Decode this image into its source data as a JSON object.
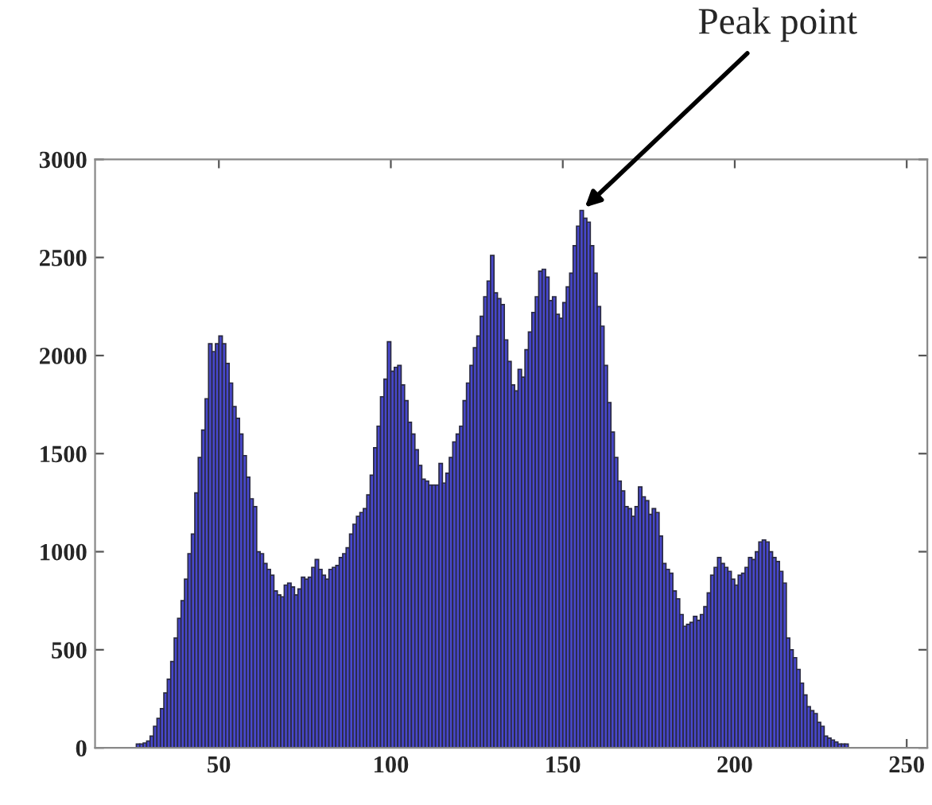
{
  "chart_data": {
    "type": "histogram",
    "bins": [
      26,
      27,
      28,
      29,
      30,
      31,
      32,
      33,
      34,
      35,
      36,
      37,
      38,
      39,
      40,
      41,
      42,
      43,
      44,
      45,
      46,
      47,
      48,
      49,
      50,
      51,
      52,
      53,
      54,
      55,
      56,
      57,
      58,
      59,
      60,
      61,
      62,
      63,
      64,
      65,
      66,
      67,
      68,
      69,
      70,
      71,
      72,
      73,
      74,
      75,
      76,
      77,
      78,
      79,
      80,
      81,
      82,
      83,
      84,
      85,
      86,
      87,
      88,
      89,
      90,
      91,
      92,
      93,
      94,
      95,
      96,
      97,
      98,
      99,
      100,
      101,
      102,
      103,
      104,
      105,
      106,
      107,
      108,
      109,
      110,
      111,
      112,
      113,
      114,
      115,
      116,
      117,
      118,
      119,
      120,
      121,
      122,
      123,
      124,
      125,
      126,
      127,
      128,
      129,
      130,
      131,
      132,
      133,
      134,
      135,
      136,
      137,
      138,
      139,
      140,
      141,
      142,
      143,
      144,
      145,
      146,
      147,
      148,
      149,
      150,
      151,
      152,
      153,
      154,
      155,
      156,
      157,
      158,
      159,
      160,
      161,
      162,
      163,
      164,
      165,
      166,
      167,
      168,
      169,
      170,
      171,
      172,
      173,
      174,
      175,
      176,
      177,
      178,
      179,
      180,
      181,
      182,
      183,
      184,
      185,
      186,
      187,
      188,
      189,
      190,
      191,
      192,
      193,
      194,
      195,
      196,
      197,
      198,
      199,
      200,
      201,
      202,
      203,
      204,
      205,
      206,
      207,
      208,
      209,
      210,
      211,
      212,
      213,
      214,
      215,
      216,
      217,
      218,
      219,
      220,
      221,
      222,
      223,
      224,
      225,
      226,
      227,
      228,
      229,
      230,
      231,
      232,
      233
    ],
    "values": [
      20,
      20,
      25,
      35,
      60,
      110,
      150,
      200,
      280,
      350,
      440,
      560,
      660,
      750,
      860,
      990,
      1090,
      1300,
      1480,
      1620,
      1780,
      2060,
      2020,
      2060,
      2100,
      2060,
      1960,
      1860,
      1740,
      1680,
      1600,
      1490,
      1380,
      1270,
      1230,
      1000,
      990,
      940,
      910,
      880,
      800,
      780,
      770,
      830,
      840,
      820,
      780,
      810,
      870,
      860,
      870,
      920,
      960,
      910,
      880,
      860,
      910,
      920,
      930,
      970,
      990,
      1020,
      1090,
      1140,
      1180,
      1200,
      1220,
      1290,
      1390,
      1530,
      1640,
      1790,
      1880,
      2070,
      1920,
      1940,
      1950,
      1850,
      1770,
      1660,
      1600,
      1520,
      1440,
      1370,
      1360,
      1340,
      1340,
      1340,
      1450,
      1350,
      1400,
      1480,
      1560,
      1600,
      1640,
      1770,
      1860,
      1950,
      2040,
      2100,
      2200,
      2300,
      2380,
      2510,
      2320,
      2290,
      2260,
      2080,
      1970,
      1850,
      1820,
      1930,
      1890,
      2030,
      2120,
      2220,
      2300,
      2430,
      2440,
      2400,
      2280,
      2300,
      2210,
      2190,
      2270,
      2350,
      2420,
      2560,
      2660,
      2740,
      2700,
      2680,
      2560,
      2420,
      2250,
      2150,
      1950,
      1760,
      1610,
      1480,
      1360,
      1310,
      1230,
      1220,
      1180,
      1230,
      1330,
      1280,
      1260,
      1190,
      1220,
      1200,
      1080,
      940,
      910,
      890,
      800,
      760,
      680,
      620,
      630,
      640,
      670,
      650,
      680,
      720,
      790,
      880,
      920,
      970,
      940,
      920,
      900,
      860,
      830,
      880,
      890,
      920,
      970,
      960,
      1000,
      1050,
      1060,
      1050,
      1000,
      970,
      950,
      900,
      840,
      560,
      500,
      460,
      400,
      330,
      270,
      210,
      190,
      175,
      130,
      110,
      60,
      50,
      40,
      30,
      20,
      20,
      20
    ],
    "color": "#4848cc",
    "xlim": [
      14,
      256
    ],
    "ylim": [
      0,
      3000
    ],
    "xticks": [
      50,
      100,
      150,
      200,
      250
    ],
    "yticks": [
      0,
      500,
      1000,
      1500,
      2000,
      2500,
      3000
    ],
    "grid": false,
    "annotations": [
      {
        "text": "Peak point",
        "x": 155.5,
        "y": 2740
      }
    ]
  }
}
